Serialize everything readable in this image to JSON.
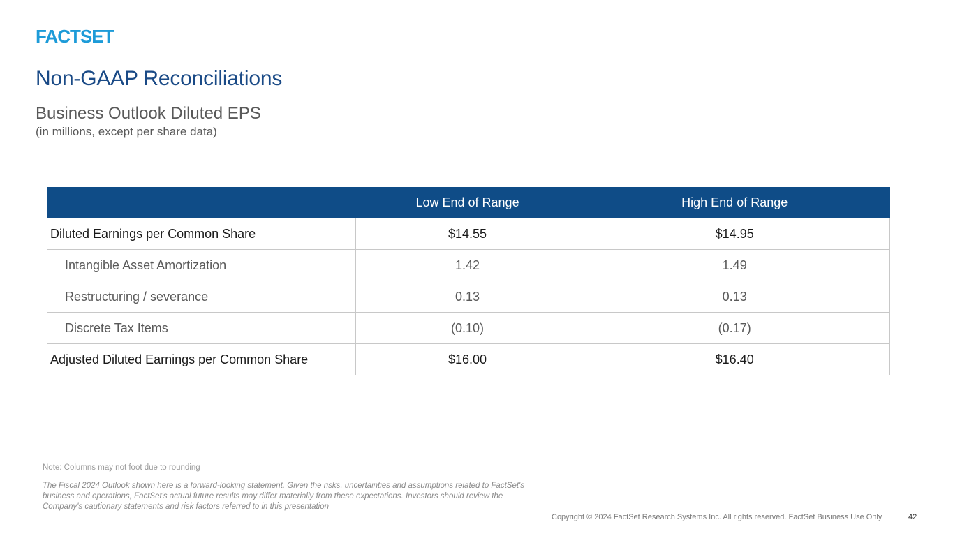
{
  "brand": {
    "logo_text": "FACTSET",
    "logo_color": "#1d9bd8"
  },
  "slide": {
    "title": "Non-GAAP Reconciliations",
    "subtitle": "Business Outlook Diluted EPS",
    "units": "(in millions, except per share data)"
  },
  "table": {
    "header_color": "#0f4c87",
    "columns": [
      "",
      "Low End of Range",
      "High End of Range"
    ],
    "rows": [
      {
        "label": "Diluted Earnings per Common Share",
        "low": "$14.55",
        "high": "$14.95"
      },
      {
        "label": "Intangible Asset Amortization",
        "low": "1.42",
        "high": "1.49"
      },
      {
        "label": "Restructuring / severance",
        "low": "0.13",
        "high": "0.13"
      },
      {
        "label": "Discrete Tax Items",
        "low": "(0.10)",
        "high": "(0.17)"
      },
      {
        "label": "Adjusted Diluted Earnings per Common Share",
        "low": "$16.00",
        "high": "$16.40"
      }
    ]
  },
  "footer": {
    "note": "Note: Columns may not foot due to rounding",
    "disclaimer": "The Fiscal 2024 Outlook shown here is a forward-looking statement. Given the risks, uncertainties and assumptions related to FactSet's business and operations, FactSet's actual future results may differ materially from these expectations. Investors should review the Company's cautionary statements and risk factors referred to in this presentation",
    "copyright": "Copyright © 2024 FactSet Research Systems Inc. All rights reserved. FactSet Business Use Only",
    "page_number": "42"
  }
}
